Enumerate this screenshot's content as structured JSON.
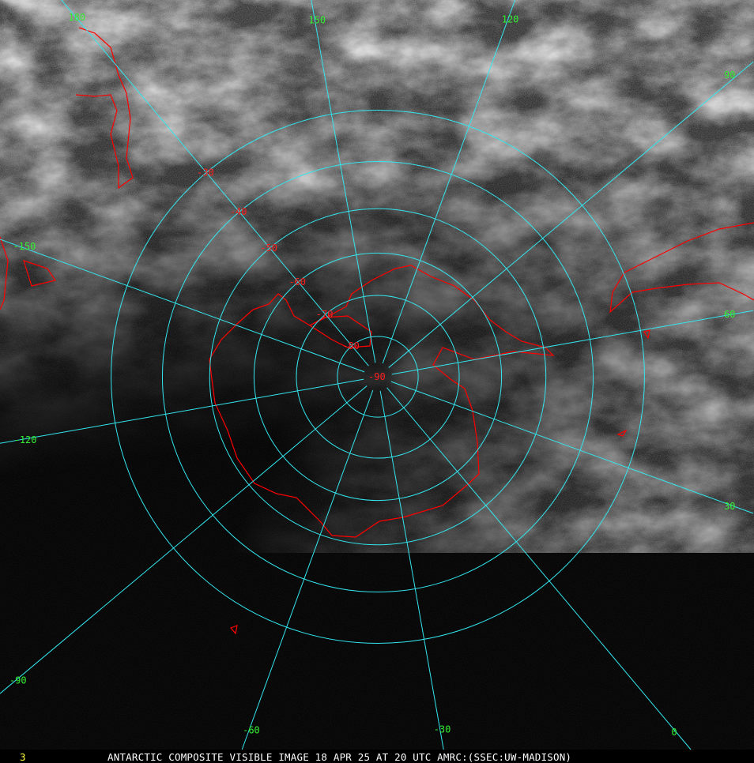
{
  "caption": {
    "frame_number": "3",
    "title": "ANTARCTIC COMPOSITE VISIBLE IMAGE 18 APR 25 AT 20 UTC AMRC:(SSEC:UW-MADISON)"
  },
  "projection": "south-polar-stereographic",
  "colors": {
    "graticule": "#33e6ee",
    "longitude_labels": "#33ee33",
    "latitude_labels": "#ff2020",
    "coastline": "#ff0000"
  },
  "meridians": [
    {
      "lon": 180,
      "label": "180"
    },
    {
      "lon": 150,
      "label": "150"
    },
    {
      "lon": 120,
      "label": "120"
    },
    {
      "lon": 90,
      "label": "90"
    },
    {
      "lon": 60,
      "label": "60"
    },
    {
      "lon": 30,
      "label": "30"
    },
    {
      "lon": 0,
      "label": "0"
    },
    {
      "lon": -30,
      "label": "-30"
    },
    {
      "lon": -60,
      "label": "-60"
    },
    {
      "lon": -90,
      "label": "-90"
    },
    {
      "lon": -120,
      "label": "-120"
    },
    {
      "lon": -150,
      "label": "-150"
    }
  ],
  "parallels": [
    {
      "lat": -90,
      "label": "-90"
    },
    {
      "lat": -80,
      "label": "-80"
    },
    {
      "lat": -70,
      "label": "-70"
    },
    {
      "lat": -60,
      "label": "-60"
    },
    {
      "lat": -50,
      "label": "-50"
    },
    {
      "lat": -40,
      "label": "-40"
    },
    {
      "lat": -30,
      "label": "-30"
    }
  ],
  "latitude_label_meridian": 180
}
